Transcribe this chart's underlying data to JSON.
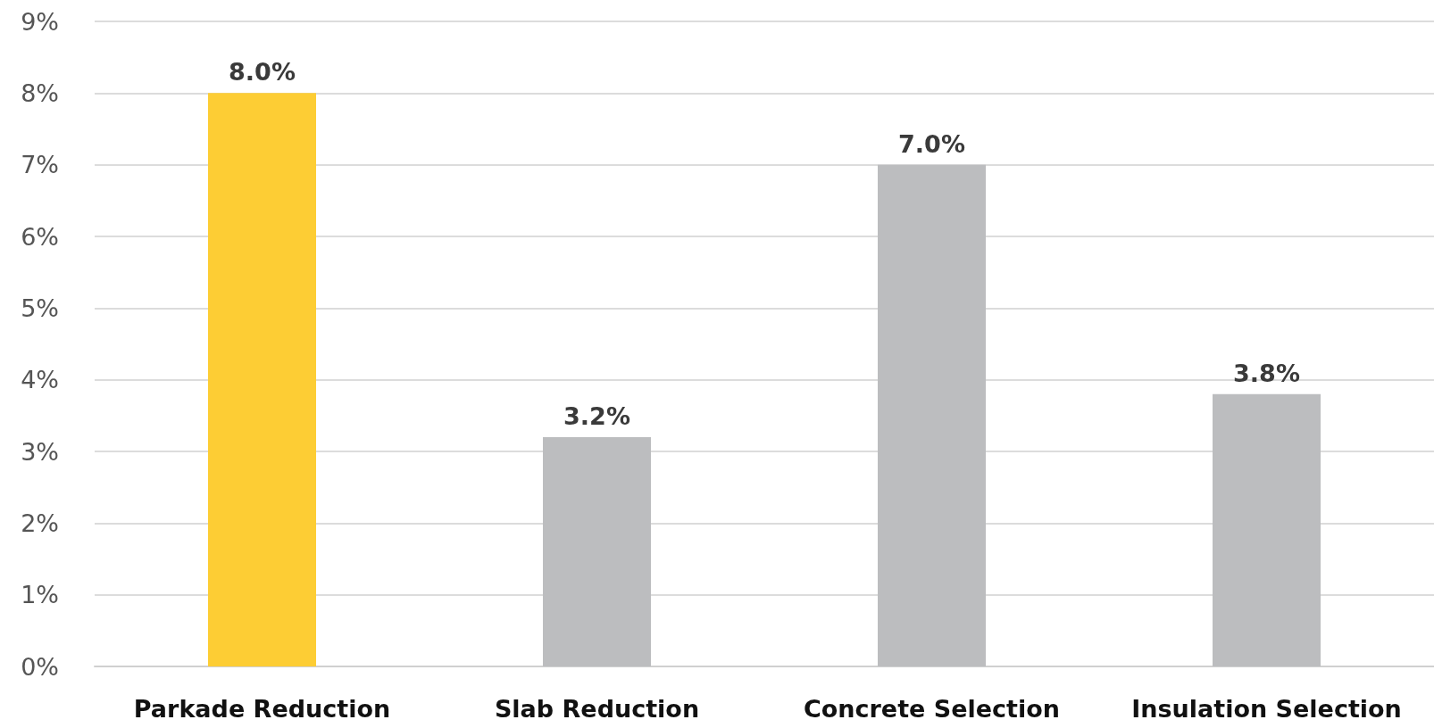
{
  "chart_data": {
    "type": "bar",
    "categories": [
      "Parkade Reduction",
      "Slab Reduction",
      "Concrete Selection",
      "Insulation Selection"
    ],
    "values": [
      8.0,
      3.2,
      7.0,
      3.8
    ],
    "colors": [
      "#fdcd34",
      "#bcbdbf",
      "#bcbdbf",
      "#bcbdbf"
    ],
    "value_labels": [
      "8.0%",
      "3.2%",
      "7.0%",
      "3.8%"
    ],
    "ylim": [
      0,
      9
    ],
    "yticks": [
      {
        "value": 0,
        "label": "0%"
      },
      {
        "value": 1,
        "label": "1%"
      },
      {
        "value": 2,
        "label": "2%"
      },
      {
        "value": 3,
        "label": "3%"
      },
      {
        "value": 4,
        "label": "4%"
      },
      {
        "value": 5,
        "label": "5%"
      },
      {
        "value": 6,
        "label": "6%"
      },
      {
        "value": 7,
        "label": "7%"
      },
      {
        "value": 8,
        "label": "8%"
      },
      {
        "value": 9,
        "label": "9%"
      }
    ],
    "grid": "y"
  }
}
